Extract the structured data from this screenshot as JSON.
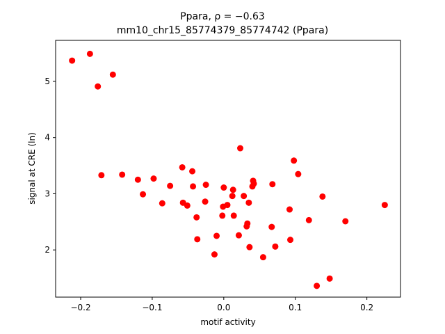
{
  "chart_data": {
    "type": "scatter",
    "title_line1": "Ppara, ρ = −0.63",
    "title_line2": "mm10_chr15_85774379_85774742 (Ppara)",
    "xlabel": "motif activity",
    "ylabel": "signal at CRE (ln)",
    "xlim": [
      -0.235,
      0.247
    ],
    "ylim": [
      1.16,
      5.73
    ],
    "xticks": [
      -0.2,
      -0.1,
      0.0,
      0.1,
      0.2
    ],
    "xtick_labels": [
      "−0.2",
      "−0.1",
      "0.0",
      "0.1",
      "0.2"
    ],
    "yticks": [
      2,
      3,
      4,
      5
    ],
    "ytick_labels": [
      "2",
      "3",
      "4",
      "5"
    ],
    "grid": false,
    "marker_color": "#ff0000",
    "points": [
      {
        "x": -0.212,
        "y": 5.37
      },
      {
        "x": -0.187,
        "y": 5.49
      },
      {
        "x": -0.155,
        "y": 5.12
      },
      {
        "x": -0.176,
        "y": 4.91
      },
      {
        "x": -0.171,
        "y": 3.33
      },
      {
        "x": -0.142,
        "y": 3.34
      },
      {
        "x": -0.12,
        "y": 3.25
      },
      {
        "x": -0.113,
        "y": 2.99
      },
      {
        "x": -0.098,
        "y": 3.27
      },
      {
        "x": -0.086,
        "y": 2.83
      },
      {
        "x": -0.075,
        "y": 3.14
      },
      {
        "x": -0.058,
        "y": 3.47
      },
      {
        "x": -0.057,
        "y": 2.84
      },
      {
        "x": -0.051,
        "y": 2.79
      },
      {
        "x": -0.044,
        "y": 3.4
      },
      {
        "x": -0.043,
        "y": 3.13
      },
      {
        "x": -0.038,
        "y": 2.58
      },
      {
        "x": -0.037,
        "y": 2.19
      },
      {
        "x": -0.025,
        "y": 3.16
      },
      {
        "x": -0.026,
        "y": 2.86
      },
      {
        "x": -0.013,
        "y": 1.92
      },
      {
        "x": -0.01,
        "y": 2.25
      },
      {
        "x": -0.002,
        "y": 2.61
      },
      {
        "x": -0.001,
        "y": 2.77
      },
      {
        "x": 0.0,
        "y": 3.11
      },
      {
        "x": 0.005,
        "y": 2.8
      },
      {
        "x": 0.012,
        "y": 2.96
      },
      {
        "x": 0.013,
        "y": 3.07
      },
      {
        "x": 0.014,
        "y": 2.61
      },
      {
        "x": 0.021,
        "y": 2.26
      },
      {
        "x": 0.023,
        "y": 3.81
      },
      {
        "x": 0.028,
        "y": 2.96
      },
      {
        "x": 0.032,
        "y": 2.42
      },
      {
        "x": 0.033,
        "y": 2.47
      },
      {
        "x": 0.035,
        "y": 2.84
      },
      {
        "x": 0.036,
        "y": 2.05
      },
      {
        "x": 0.04,
        "y": 3.13
      },
      {
        "x": 0.041,
        "y": 3.23
      },
      {
        "x": 0.042,
        "y": 3.18
      },
      {
        "x": 0.055,
        "y": 1.87
      },
      {
        "x": 0.067,
        "y": 2.41
      },
      {
        "x": 0.068,
        "y": 3.17
      },
      {
        "x": 0.072,
        "y": 2.06
      },
      {
        "x": 0.092,
        "y": 2.72
      },
      {
        "x": 0.093,
        "y": 2.18
      },
      {
        "x": 0.098,
        "y": 3.59
      },
      {
        "x": 0.104,
        "y": 3.35
      },
      {
        "x": 0.119,
        "y": 2.53
      },
      {
        "x": 0.13,
        "y": 1.36
      },
      {
        "x": 0.138,
        "y": 2.95
      },
      {
        "x": 0.148,
        "y": 1.49
      },
      {
        "x": 0.17,
        "y": 2.51
      },
      {
        "x": 0.225,
        "y": 2.8
      }
    ]
  }
}
